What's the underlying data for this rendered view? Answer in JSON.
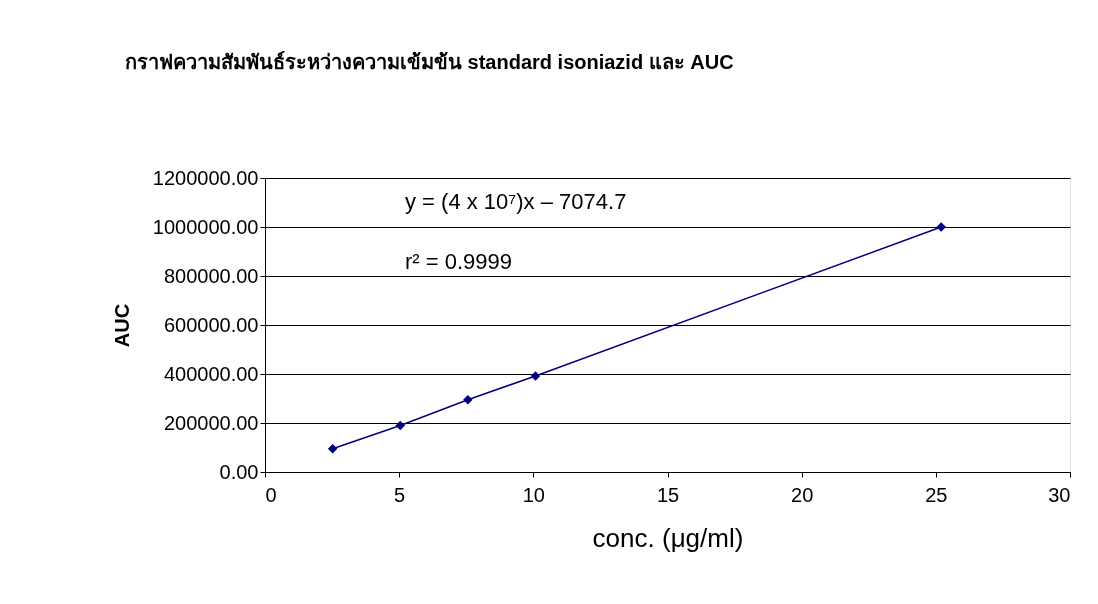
{
  "chart_data": {
    "type": "line",
    "title": "กราฟความสัมพันธ์ระหว่างความเข้มข้น standard isoniazid และ AUC",
    "xlabel": "conc. (μg/ml)",
    "ylabel": "AUC",
    "annotations": [
      "y  =  (4 x 10⁷)x – 7074.7",
      "r²  =  0.9999"
    ],
    "x": [
      2.52,
      5.04,
      7.56,
      10.08,
      25.2
    ],
    "series": [
      {
        "color": "#000080",
        "values": [
          95000,
          190000,
          295000,
          392000,
          1000000
        ]
      }
    ],
    "xlim": [
      0,
      30
    ],
    "xticks": [
      0,
      5,
      10,
      15,
      20,
      25,
      30
    ],
    "ylim": [
      0,
      1200000
    ],
    "yticks": [
      {
        "value": 0,
        "label": "0.00"
      },
      {
        "value": 200000,
        "label": "200000.00"
      },
      {
        "value": 400000,
        "label": "400000.00"
      },
      {
        "value": 600000,
        "label": "600000.00"
      },
      {
        "value": 800000,
        "label": "800000.00"
      },
      {
        "value": 1000000,
        "label": "1000000.00"
      },
      {
        "value": 1200000,
        "label": "1200000.00"
      }
    ],
    "grid": "y",
    "marker": "diamond",
    "line_style": "solid"
  }
}
